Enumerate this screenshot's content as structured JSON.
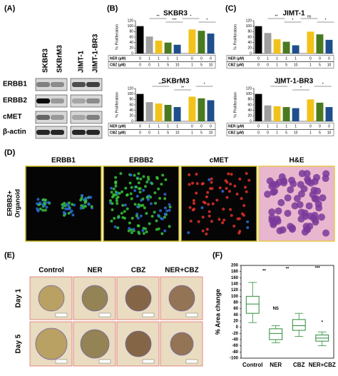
{
  "panels": {
    "a": {
      "letter": "(A)",
      "cell_lines": [
        "SKBR3",
        "SKBrM3",
        "JIMT-1",
        "JIMT-1-BR3"
      ],
      "proteins": [
        "ERBB1",
        "ERBB2",
        "cMET",
        "β-actin"
      ]
    },
    "b": {
      "letter": "(B)"
    },
    "c": {
      "letter": "(C)"
    },
    "d": {
      "letter": "(D)",
      "stains": [
        "ERBB1",
        "ERBB2",
        "cMET",
        "H&E"
      ],
      "side_label": [
        "ERBB2+",
        "Organoid"
      ]
    },
    "e": {
      "letter": "(E)",
      "treatments": [
        "Control",
        "NER",
        "CBZ",
        "NER+CBZ"
      ],
      "days": [
        "Day 1",
        "Day 5"
      ]
    },
    "f": {
      "letter": "(F)"
    }
  },
  "chart_data": [
    {
      "type": "bar",
      "title": "SKBR3",
      "y_label": "% Proliferation",
      "values": [
        100,
        62,
        47,
        40,
        32,
        88,
        83,
        73
      ],
      "colors": [
        "#000000",
        "#9e9e9e",
        "#f2c21b",
        "#4a7a1f",
        "#1f4e8c",
        "#f2c21b",
        "#4a7a1f",
        "#1f4e8c"
      ],
      "conditions": [
        {
          "name": "NER (µM)",
          "values": [
            0,
            1,
            1,
            1,
            1,
            0,
            0,
            0
          ]
        },
        {
          "name": "CBZ (µM)",
          "values": [
            0,
            0,
            1,
            5,
            10,
            1,
            5,
            10
          ]
        }
      ],
      "annotations": [
        "**",
        "***",
        "*",
        "*"
      ],
      "ylim": [
        0,
        120
      ],
      "yticks": [
        0,
        20,
        40,
        60,
        80,
        100,
        120
      ]
    },
    {
      "type": "bar",
      "title": "SKBrM3",
      "y_label": "% Proliferation",
      "values": [
        100,
        70,
        65,
        60,
        52,
        90,
        84,
        77
      ],
      "colors": [
        "#000000",
        "#9e9e9e",
        "#f2c21b",
        "#4a7a1f",
        "#1f4e8c",
        "#f2c21b",
        "#4a7a1f",
        "#1f4e8c"
      ],
      "conditions": [
        {
          "name": "NER (µM)",
          "values": [
            0,
            1,
            1,
            1,
            1,
            0,
            0,
            0
          ]
        },
        {
          "name": "CBZ (µM)",
          "values": [
            0,
            0,
            1,
            5,
            10,
            1,
            5,
            10
          ]
        }
      ],
      "annotations": [
        "***",
        "**",
        "*"
      ],
      "ylim": [
        0,
        120
      ],
      "yticks": [
        0,
        20,
        40,
        60,
        80,
        100,
        120
      ]
    },
    {
      "type": "bar",
      "title": "JIMT-1",
      "y_label": "% Proliferation",
      "values": [
        100,
        75,
        52,
        43,
        30,
        80,
        70,
        50
      ],
      "colors": [
        "#000000",
        "#9e9e9e",
        "#f2c21b",
        "#4a7a1f",
        "#1f4e8c",
        "#f2c21b",
        "#4a7a1f",
        "#1f4e8c"
      ],
      "conditions": [
        {
          "name": "NER (µM)",
          "values": [
            0,
            1,
            1,
            1,
            1,
            0,
            0,
            0
          ]
        },
        {
          "name": "CBZ (µM)",
          "values": [
            0,
            0,
            1,
            5,
            10,
            1,
            5,
            10
          ]
        }
      ],
      "annotations": [
        "**",
        "*",
        "ns",
        "*"
      ],
      "ylim": [
        0,
        120
      ],
      "yticks": [
        0,
        20,
        40,
        60,
        80,
        100,
        120
      ]
    },
    {
      "type": "bar",
      "title": "JIMT-1-BR3",
      "y_label": "% Proliferation",
      "values": [
        100,
        58,
        55,
        52,
        48,
        80,
        68,
        52
      ],
      "colors": [
        "#000000",
        "#9e9e9e",
        "#f2c21b",
        "#4a7a1f",
        "#1f4e8c",
        "#f2c21b",
        "#4a7a1f",
        "#1f4e8c"
      ],
      "conditions": [
        {
          "name": "NER (µM)",
          "values": [
            0,
            1,
            1,
            1,
            1,
            0,
            0,
            0
          ]
        },
        {
          "name": "CBZ (µM)",
          "values": [
            0,
            0,
            1,
            5,
            10,
            1,
            5,
            10
          ]
        }
      ],
      "annotations": [
        "**",
        "*",
        "*"
      ],
      "ylim": [
        0,
        120
      ],
      "yticks": [
        0,
        20,
        40,
        60,
        80,
        100,
        120
      ]
    },
    {
      "type": "box",
      "y_label": "% Area change",
      "categories": [
        "Control",
        "NER",
        "CBZ",
        "NER+CBZ"
      ],
      "boxes": [
        {
          "min": 15,
          "q1": 45,
          "median": 75,
          "q3": 100,
          "max": 145
        },
        {
          "min": -50,
          "q1": -40,
          "median": -20,
          "q3": -5,
          "max": 5
        },
        {
          "min": -30,
          "q1": -10,
          "median": 5,
          "q3": 25,
          "max": 45
        },
        {
          "min": -60,
          "q1": -45,
          "median": -35,
          "q3": -25,
          "max": -15
        }
      ],
      "color": "#2e8b3a",
      "annotations": [
        "**",
        "**",
        "***",
        "NS",
        "*"
      ],
      "ylim": [
        -100,
        200
      ],
      "yticks": [
        -100,
        -80,
        -60,
        -40,
        -20,
        0,
        20,
        40,
        60,
        80,
        100,
        120,
        140,
        160,
        180,
        200
      ]
    }
  ]
}
